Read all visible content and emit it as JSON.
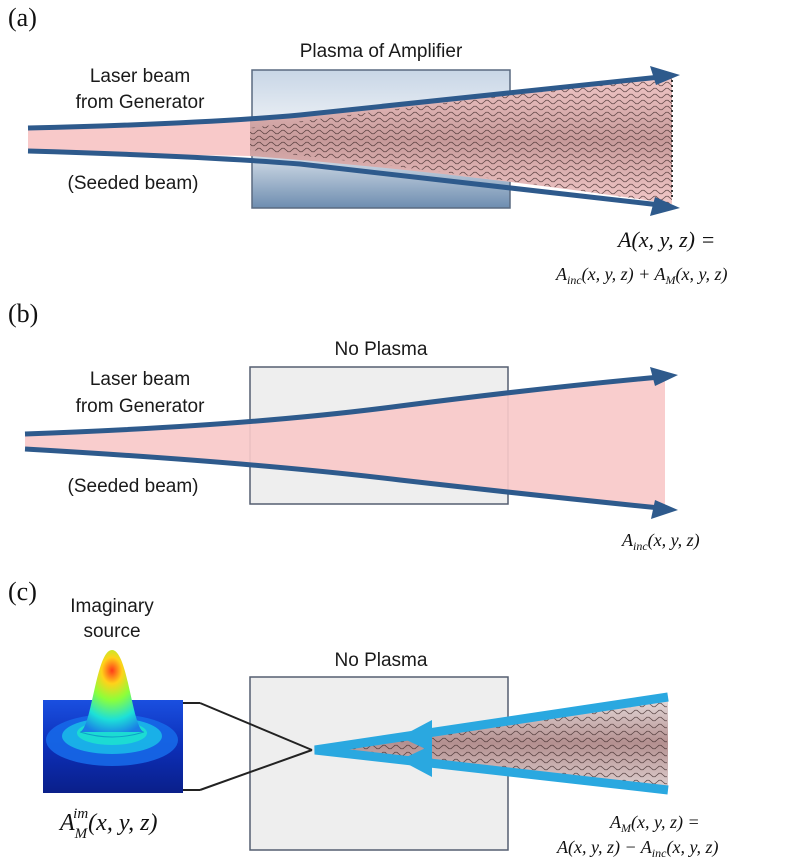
{
  "panel_a": {
    "letter": "(a)",
    "box_title": "Plasma of Amplifier",
    "beam_label_line1": "Laser beam",
    "beam_label_line2": "from Generator",
    "seeded_label": "(Seeded beam)",
    "eq_line1": "A(x, y, z) =",
    "eq_line2": "A_inc(x, y, z) + A_M(x, y, z)"
  },
  "panel_b": {
    "letter": "(b)",
    "box_title": "No Plasma",
    "beam_label_line1": "Laser beam",
    "beam_label_line2": "from Generator",
    "seeded_label": "(Seeded beam)",
    "eq": "A_inc(x, y, z)"
  },
  "panel_c": {
    "letter": "(c)",
    "box_title": "No Plasma",
    "source_line1": "Imaginary",
    "source_line2": "source",
    "source_eq": "A_M^im(x, y, z)",
    "eq_line1": "A_M(x, y, z) =",
    "eq_line2": "A(x, y, z) − A_inc(x, y, z)"
  },
  "colors": {
    "beam_fill": "#f8c9c9",
    "beam_edge": "#2e5a8c",
    "arrow_light": "#2aa8e0",
    "box_fill": "#eeeeee",
    "box_stroke": "#555f70",
    "wave": "#3a2a2a"
  }
}
